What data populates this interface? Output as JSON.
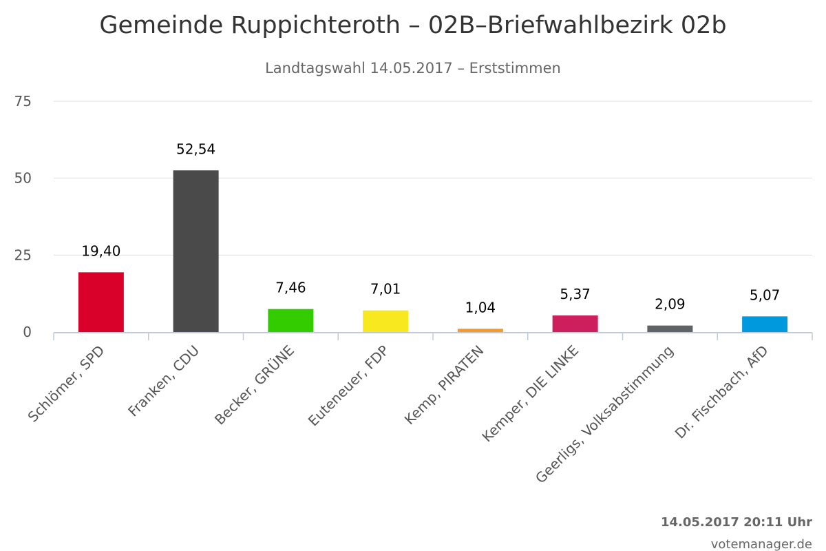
{
  "chart_data": {
    "type": "bar",
    "title": "Gemeinde Ruppichteroth – 02B–Briefwahlbezirk 02b",
    "subtitle": "Landtagswahl 14.05.2017 – Erststimmen",
    "categories": [
      "Schlömer, SPD",
      "Franken, CDU",
      "Becker, GRÜNE",
      "Euteneuer, FDP",
      "Kemp, PIRATEN",
      "Kemper, DIE LINKE",
      "Geerligs, Volksabstimmung",
      "Dr. Fischbach, AfD"
    ],
    "values": [
      19.4,
      52.54,
      7.46,
      7.01,
      1.04,
      5.37,
      2.09,
      5.07
    ],
    "data_labels": [
      "19,40",
      "52,54",
      "7,46",
      "7,01",
      "1,04",
      "5,37",
      "2,09",
      "5,07"
    ],
    "colors": [
      "#d9002a",
      "#4a4a4a",
      "#33cc00",
      "#f7e81f",
      "#f39a2a",
      "#cc1f5c",
      "#5f6366",
      "#0099dd"
    ],
    "xlabel": "",
    "ylabel": "",
    "ylim": [
      0,
      75
    ],
    "yticks": [
      0,
      25,
      50,
      75
    ],
    "grid": true,
    "legend": "none"
  },
  "footer": {
    "timestamp": "14.05.2017 20:11 Uhr",
    "credit": "votemanager.de"
  }
}
